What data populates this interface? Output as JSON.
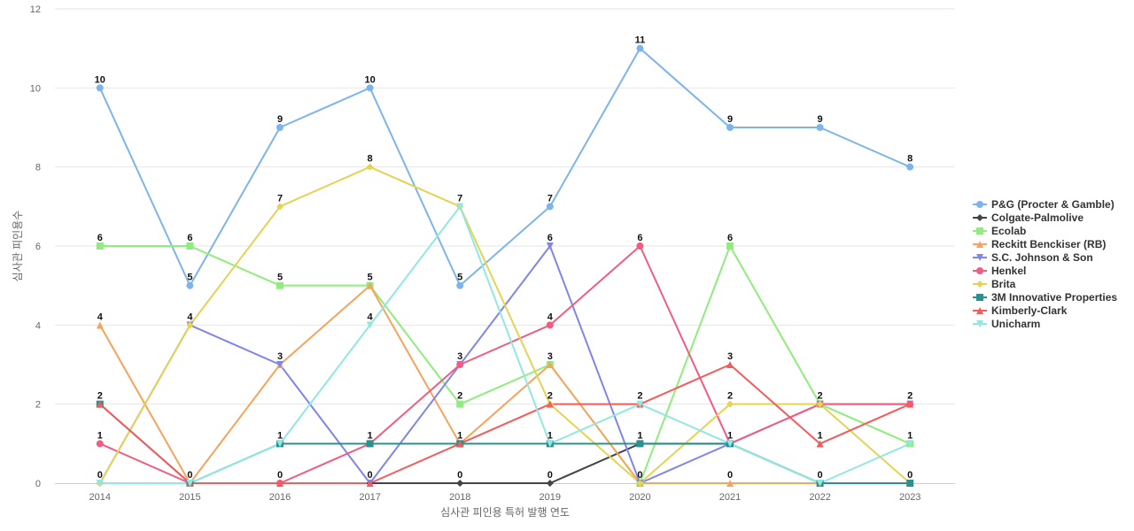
{
  "chart_data": {
    "type": "line",
    "title": "",
    "xlabel": "심사관 피인용 특허 발행 연도",
    "ylabel": "심사관 피인용수",
    "x": [
      "2014",
      "2015",
      "2016",
      "2017",
      "2018",
      "2019",
      "2020",
      "2021",
      "2022",
      "2023"
    ],
    "ylim": [
      0,
      12
    ],
    "yticks": [
      0,
      2,
      4,
      6,
      8,
      10,
      12
    ],
    "grid": true,
    "legend_position": "right",
    "series": [
      {
        "name": "P&G (Procter & Gamble)",
        "color": "#7cb5ec",
        "marker": "circle",
        "values": [
          10,
          5,
          9,
          10,
          5,
          7,
          11,
          9,
          9,
          8
        ]
      },
      {
        "name": "Colgate-Palmolive",
        "color": "#434348",
        "marker": "diamond",
        "values": [
          0,
          0,
          0,
          0,
          0,
          0,
          1,
          1,
          0,
          0
        ]
      },
      {
        "name": "Ecolab",
        "color": "#90ed7d",
        "marker": "square",
        "values": [
          6,
          6,
          5,
          5,
          2,
          3,
          0,
          6,
          2,
          1
        ]
      },
      {
        "name": "Reckitt Benckiser (RB)",
        "color": "#f7a35c",
        "marker": "triangle",
        "values": [
          4,
          0,
          3,
          5,
          1,
          3,
          0,
          0,
          0,
          0
        ]
      },
      {
        "name": "S.C. Johnson & Son",
        "color": "#8085e9",
        "marker": "triangle-down",
        "values": [
          0,
          4,
          3,
          0,
          3,
          6,
          0,
          1,
          2,
          2
        ]
      },
      {
        "name": "Henkel",
        "color": "#f15c80",
        "marker": "circle",
        "values": [
          1,
          0,
          0,
          1,
          3,
          4,
          6,
          1,
          2,
          2
        ]
      },
      {
        "name": "Brita",
        "color": "#e4d354",
        "marker": "diamond",
        "values": [
          0,
          4,
          7,
          8,
          7,
          2,
          0,
          2,
          2,
          0
        ]
      },
      {
        "name": "3M Innovative Properties",
        "color": "#2b908f",
        "marker": "square",
        "values": [
          2,
          0,
          1,
          1,
          1,
          1,
          1,
          1,
          0,
          0
        ]
      },
      {
        "name": "Kimberly-Clark",
        "color": "#f45b5b",
        "marker": "triangle",
        "values": [
          2,
          0,
          0,
          0,
          1,
          2,
          2,
          3,
          1,
          2
        ]
      },
      {
        "name": "Unicharm",
        "color": "#91e8e1",
        "marker": "triangle-down",
        "values": [
          0,
          0,
          1,
          4,
          7,
          1,
          2,
          1,
          0,
          1
        ]
      }
    ],
    "data_labels": [
      {
        "x": "2014",
        "value": 10
      },
      {
        "x": "2014",
        "value": 6
      },
      {
        "x": "2014",
        "value": 4
      },
      {
        "x": "2014",
        "value": 2
      },
      {
        "x": "2014",
        "value": 1
      },
      {
        "x": "2014",
        "value": 0
      },
      {
        "x": "2015",
        "value": 5
      },
      {
        "x": "2015",
        "value": 6
      },
      {
        "x": "2015",
        "value": 4
      },
      {
        "x": "2015",
        "value": 0
      },
      {
        "x": "2016",
        "value": 9
      },
      {
        "x": "2016",
        "value": 7
      },
      {
        "x": "2016",
        "value": 5
      },
      {
        "x": "2016",
        "value": 3
      },
      {
        "x": "2016",
        "value": 1
      },
      {
        "x": "2016",
        "value": 0
      },
      {
        "x": "2017",
        "value": 10
      },
      {
        "x": "2017",
        "value": 8
      },
      {
        "x": "2017",
        "value": 5
      },
      {
        "x": "2017",
        "value": 4
      },
      {
        "x": "2017",
        "value": 1
      },
      {
        "x": "2017",
        "value": 0
      },
      {
        "x": "2018",
        "value": 7
      },
      {
        "x": "2018",
        "value": 5
      },
      {
        "x": "2018",
        "value": 3
      },
      {
        "x": "2018",
        "value": 2
      },
      {
        "x": "2018",
        "value": 1
      },
      {
        "x": "2018",
        "value": 0
      },
      {
        "x": "2019",
        "value": 7
      },
      {
        "x": "2019",
        "value": 6
      },
      {
        "x": "2019",
        "value": 4
      },
      {
        "x": "2019",
        "value": 3
      },
      {
        "x": "2019",
        "value": 2
      },
      {
        "x": "2019",
        "value": 1
      },
      {
        "x": "2019",
        "value": 0
      },
      {
        "x": "2020",
        "value": 11
      },
      {
        "x": "2020",
        "value": 6
      },
      {
        "x": "2020",
        "value": 2
      },
      {
        "x": "2020",
        "value": 1
      },
      {
        "x": "2020",
        "value": 0
      },
      {
        "x": "2021",
        "value": 9
      },
      {
        "x": "2021",
        "value": 6
      },
      {
        "x": "2021",
        "value": 3
      },
      {
        "x": "2021",
        "value": 2
      },
      {
        "x": "2021",
        "value": 1
      },
      {
        "x": "2021",
        "value": 0
      },
      {
        "x": "2022",
        "value": 9
      },
      {
        "x": "2022",
        "value": 2
      },
      {
        "x": "2022",
        "value": 1
      },
      {
        "x": "2022",
        "value": 0
      },
      {
        "x": "2023",
        "value": 8
      },
      {
        "x": "2023",
        "value": 2
      },
      {
        "x": "2023",
        "value": 1
      },
      {
        "x": "2023",
        "value": 0
      }
    ]
  }
}
